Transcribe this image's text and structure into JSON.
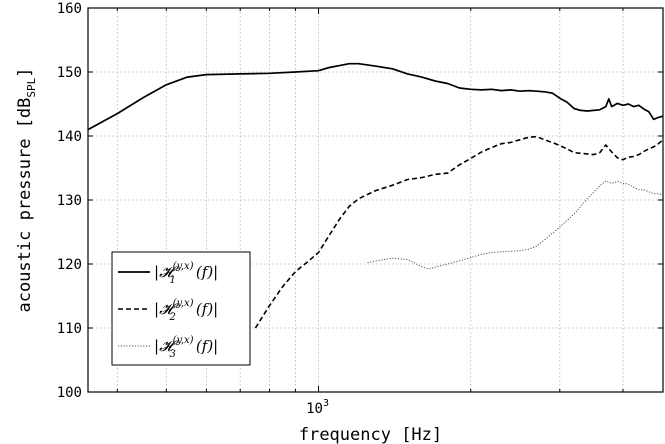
{
  "chart_data": {
    "type": "line",
    "xlabel": "frequency [Hz]",
    "ylabel_main": "acoustic pressure [dB",
    "ylabel_sub": "SPL",
    "ylabel_close": "]",
    "xscale": "log",
    "xlim": [
      350,
      4800
    ],
    "ylim": [
      100,
      160
    ],
    "yticks": [
      100,
      110,
      120,
      130,
      140,
      150,
      160
    ],
    "xtick_major": {
      "base": "10",
      "exp": "3",
      "value": 1000
    },
    "grid": true,
    "legend_position": "bottom-left",
    "series": [
      {
        "name": "|H1(y,x)(f)|",
        "legend": {
          "pre": "|",
          "H": "𝓗",
          "sub": "1",
          "sup": "(y,x)",
          "post": "(f)|"
        },
        "style": "solid",
        "points": [
          [
            350,
            141
          ],
          [
            400,
            143.5
          ],
          [
            450,
            146
          ],
          [
            500,
            148
          ],
          [
            550,
            149.2
          ],
          [
            600,
            149.6
          ],
          [
            700,
            149.7
          ],
          [
            800,
            149.8
          ],
          [
            900,
            150
          ],
          [
            1000,
            150.2
          ],
          [
            1050,
            150.7
          ],
          [
            1100,
            151
          ],
          [
            1150,
            151.3
          ],
          [
            1200,
            151.3
          ],
          [
            1300,
            150.9
          ],
          [
            1400,
            150.5
          ],
          [
            1500,
            149.7
          ],
          [
            1600,
            149.2
          ],
          [
            1700,
            148.6
          ],
          [
            1800,
            148.2
          ],
          [
            1900,
            147.5
          ],
          [
            2000,
            147.3
          ],
          [
            2100,
            147.2
          ],
          [
            2200,
            147.3
          ],
          [
            2300,
            147.1
          ],
          [
            2400,
            147.2
          ],
          [
            2500,
            147.0
          ],
          [
            2600,
            147.1
          ],
          [
            2700,
            147.0
          ],
          [
            2800,
            146.9
          ],
          [
            2900,
            146.7
          ],
          [
            3000,
            145.9
          ],
          [
            3100,
            145.3
          ],
          [
            3200,
            144.3
          ],
          [
            3300,
            144.0
          ],
          [
            3400,
            143.9
          ],
          [
            3500,
            144.0
          ],
          [
            3600,
            144.1
          ],
          [
            3700,
            144.6
          ],
          [
            3750,
            145.8
          ],
          [
            3800,
            144.6
          ],
          [
            3900,
            145.1
          ],
          [
            4000,
            144.8
          ],
          [
            4100,
            145.0
          ],
          [
            4200,
            144.6
          ],
          [
            4300,
            144.8
          ],
          [
            4400,
            144.2
          ],
          [
            4500,
            143.8
          ],
          [
            4600,
            142.6
          ],
          [
            4700,
            142.9
          ],
          [
            4800,
            143.1
          ]
        ]
      },
      {
        "name": "|H2(y,x)(f)|",
        "legend": {
          "pre": "|",
          "H": "𝓗",
          "sub": "2",
          "sup": "(y,x)",
          "post": "(f)|"
        },
        "style": "dashed",
        "points": [
          [
            750,
            110
          ],
          [
            800,
            113.5
          ],
          [
            850,
            116.5
          ],
          [
            900,
            118.8
          ],
          [
            950,
            120.3
          ],
          [
            1000,
            121.8
          ],
          [
            1050,
            124.5
          ],
          [
            1100,
            127
          ],
          [
            1150,
            129
          ],
          [
            1200,
            130.2
          ],
          [
            1300,
            131.5
          ],
          [
            1400,
            132.3
          ],
          [
            1500,
            133.2
          ],
          [
            1600,
            133.5
          ],
          [
            1700,
            134
          ],
          [
            1800,
            134.2
          ],
          [
            1900,
            135.5
          ],
          [
            2000,
            136.5
          ],
          [
            2100,
            137.5
          ],
          [
            2200,
            138.2
          ],
          [
            2300,
            138.8
          ],
          [
            2400,
            139
          ],
          [
            2500,
            139.4
          ],
          [
            2600,
            139.8
          ],
          [
            2700,
            139.9
          ],
          [
            2800,
            139.4
          ],
          [
            2900,
            139
          ],
          [
            3000,
            138.5
          ],
          [
            3100,
            138
          ],
          [
            3200,
            137.4
          ],
          [
            3300,
            137.3
          ],
          [
            3400,
            137.2
          ],
          [
            3500,
            137.1
          ],
          [
            3600,
            137.4
          ],
          [
            3700,
            138.6
          ],
          [
            3800,
            137.5
          ],
          [
            3900,
            136.6
          ],
          [
            4000,
            136.3
          ],
          [
            4100,
            136.7
          ],
          [
            4200,
            136.8
          ],
          [
            4300,
            137.1
          ],
          [
            4400,
            137.6
          ],
          [
            4500,
            138
          ],
          [
            4600,
            138.3
          ],
          [
            4700,
            138.8
          ],
          [
            4800,
            139.4
          ]
        ]
      },
      {
        "name": "|H3(y,x)(f)|",
        "legend": {
          "pre": "|",
          "H": "𝓗",
          "sub": "3",
          "sup": "(y,x)",
          "post": "(f)|"
        },
        "style": "dotted",
        "points": [
          [
            1250,
            120.2
          ],
          [
            1300,
            120.5
          ],
          [
            1400,
            120.9
          ],
          [
            1500,
            120.7
          ],
          [
            1600,
            119.6
          ],
          [
            1650,
            119.2
          ],
          [
            1700,
            119.5
          ],
          [
            1800,
            120
          ],
          [
            1900,
            120.5
          ],
          [
            2000,
            121
          ],
          [
            2100,
            121.5
          ],
          [
            2200,
            121.8
          ],
          [
            2300,
            121.9
          ],
          [
            2400,
            122
          ],
          [
            2500,
            122.1
          ],
          [
            2600,
            122.3
          ],
          [
            2700,
            122.8
          ],
          [
            2800,
            123.8
          ],
          [
            2900,
            124.8
          ],
          [
            3000,
            125.8
          ],
          [
            3100,
            126.8
          ],
          [
            3200,
            127.8
          ],
          [
            3300,
            129
          ],
          [
            3400,
            130.2
          ],
          [
            3500,
            131.2
          ],
          [
            3600,
            132.2
          ],
          [
            3700,
            133
          ],
          [
            3800,
            132.6
          ],
          [
            3900,
            132.9
          ],
          [
            4000,
            132.6
          ],
          [
            4100,
            132.5
          ],
          [
            4200,
            132
          ],
          [
            4300,
            131.6
          ],
          [
            4400,
            131.6
          ],
          [
            4500,
            131.3
          ],
          [
            4600,
            131
          ],
          [
            4700,
            131
          ],
          [
            4800,
            130.8
          ]
        ]
      }
    ]
  }
}
